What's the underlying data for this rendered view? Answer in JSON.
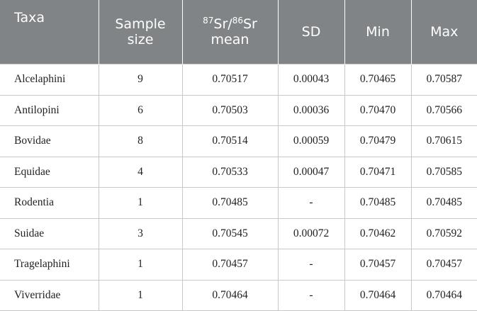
{
  "table": {
    "header": [
      "Taxa",
      "Sample size",
      [
        "87",
        "Sr/",
        "86",
        "Sr",
        "mean"
      ],
      "SD",
      "Min",
      "Max"
    ],
    "rows": [
      [
        "Alcelaphini",
        9,
        "0.70517",
        "0.00043",
        "0.70465",
        "0.70587"
      ],
      [
        "Antilopini",
        6,
        "0.70503",
        "0.00036",
        "0.70470",
        "0.70566"
      ],
      [
        "Bovidae",
        8,
        "0.70514",
        "0.00059",
        "0.70479",
        "0.70615"
      ],
      [
        "Equidae",
        4,
        "0.70533",
        "0.00047",
        "0.70471",
        "0.70585"
      ],
      [
        "Rodentia",
        1,
        "0.70485",
        "-",
        "0.70485",
        "0.70485"
      ],
      [
        "Suidae",
        3,
        "0.70545",
        "0.00072",
        "0.70462",
        "0.70592"
      ],
      [
        "Tragelaphini",
        1,
        "0.70457",
        "-",
        "0.70457",
        "0.70457"
      ],
      [
        "Viverridae",
        1,
        "0.70464",
        "-",
        "0.70464",
        "0.70464"
      ]
    ]
  }
}
